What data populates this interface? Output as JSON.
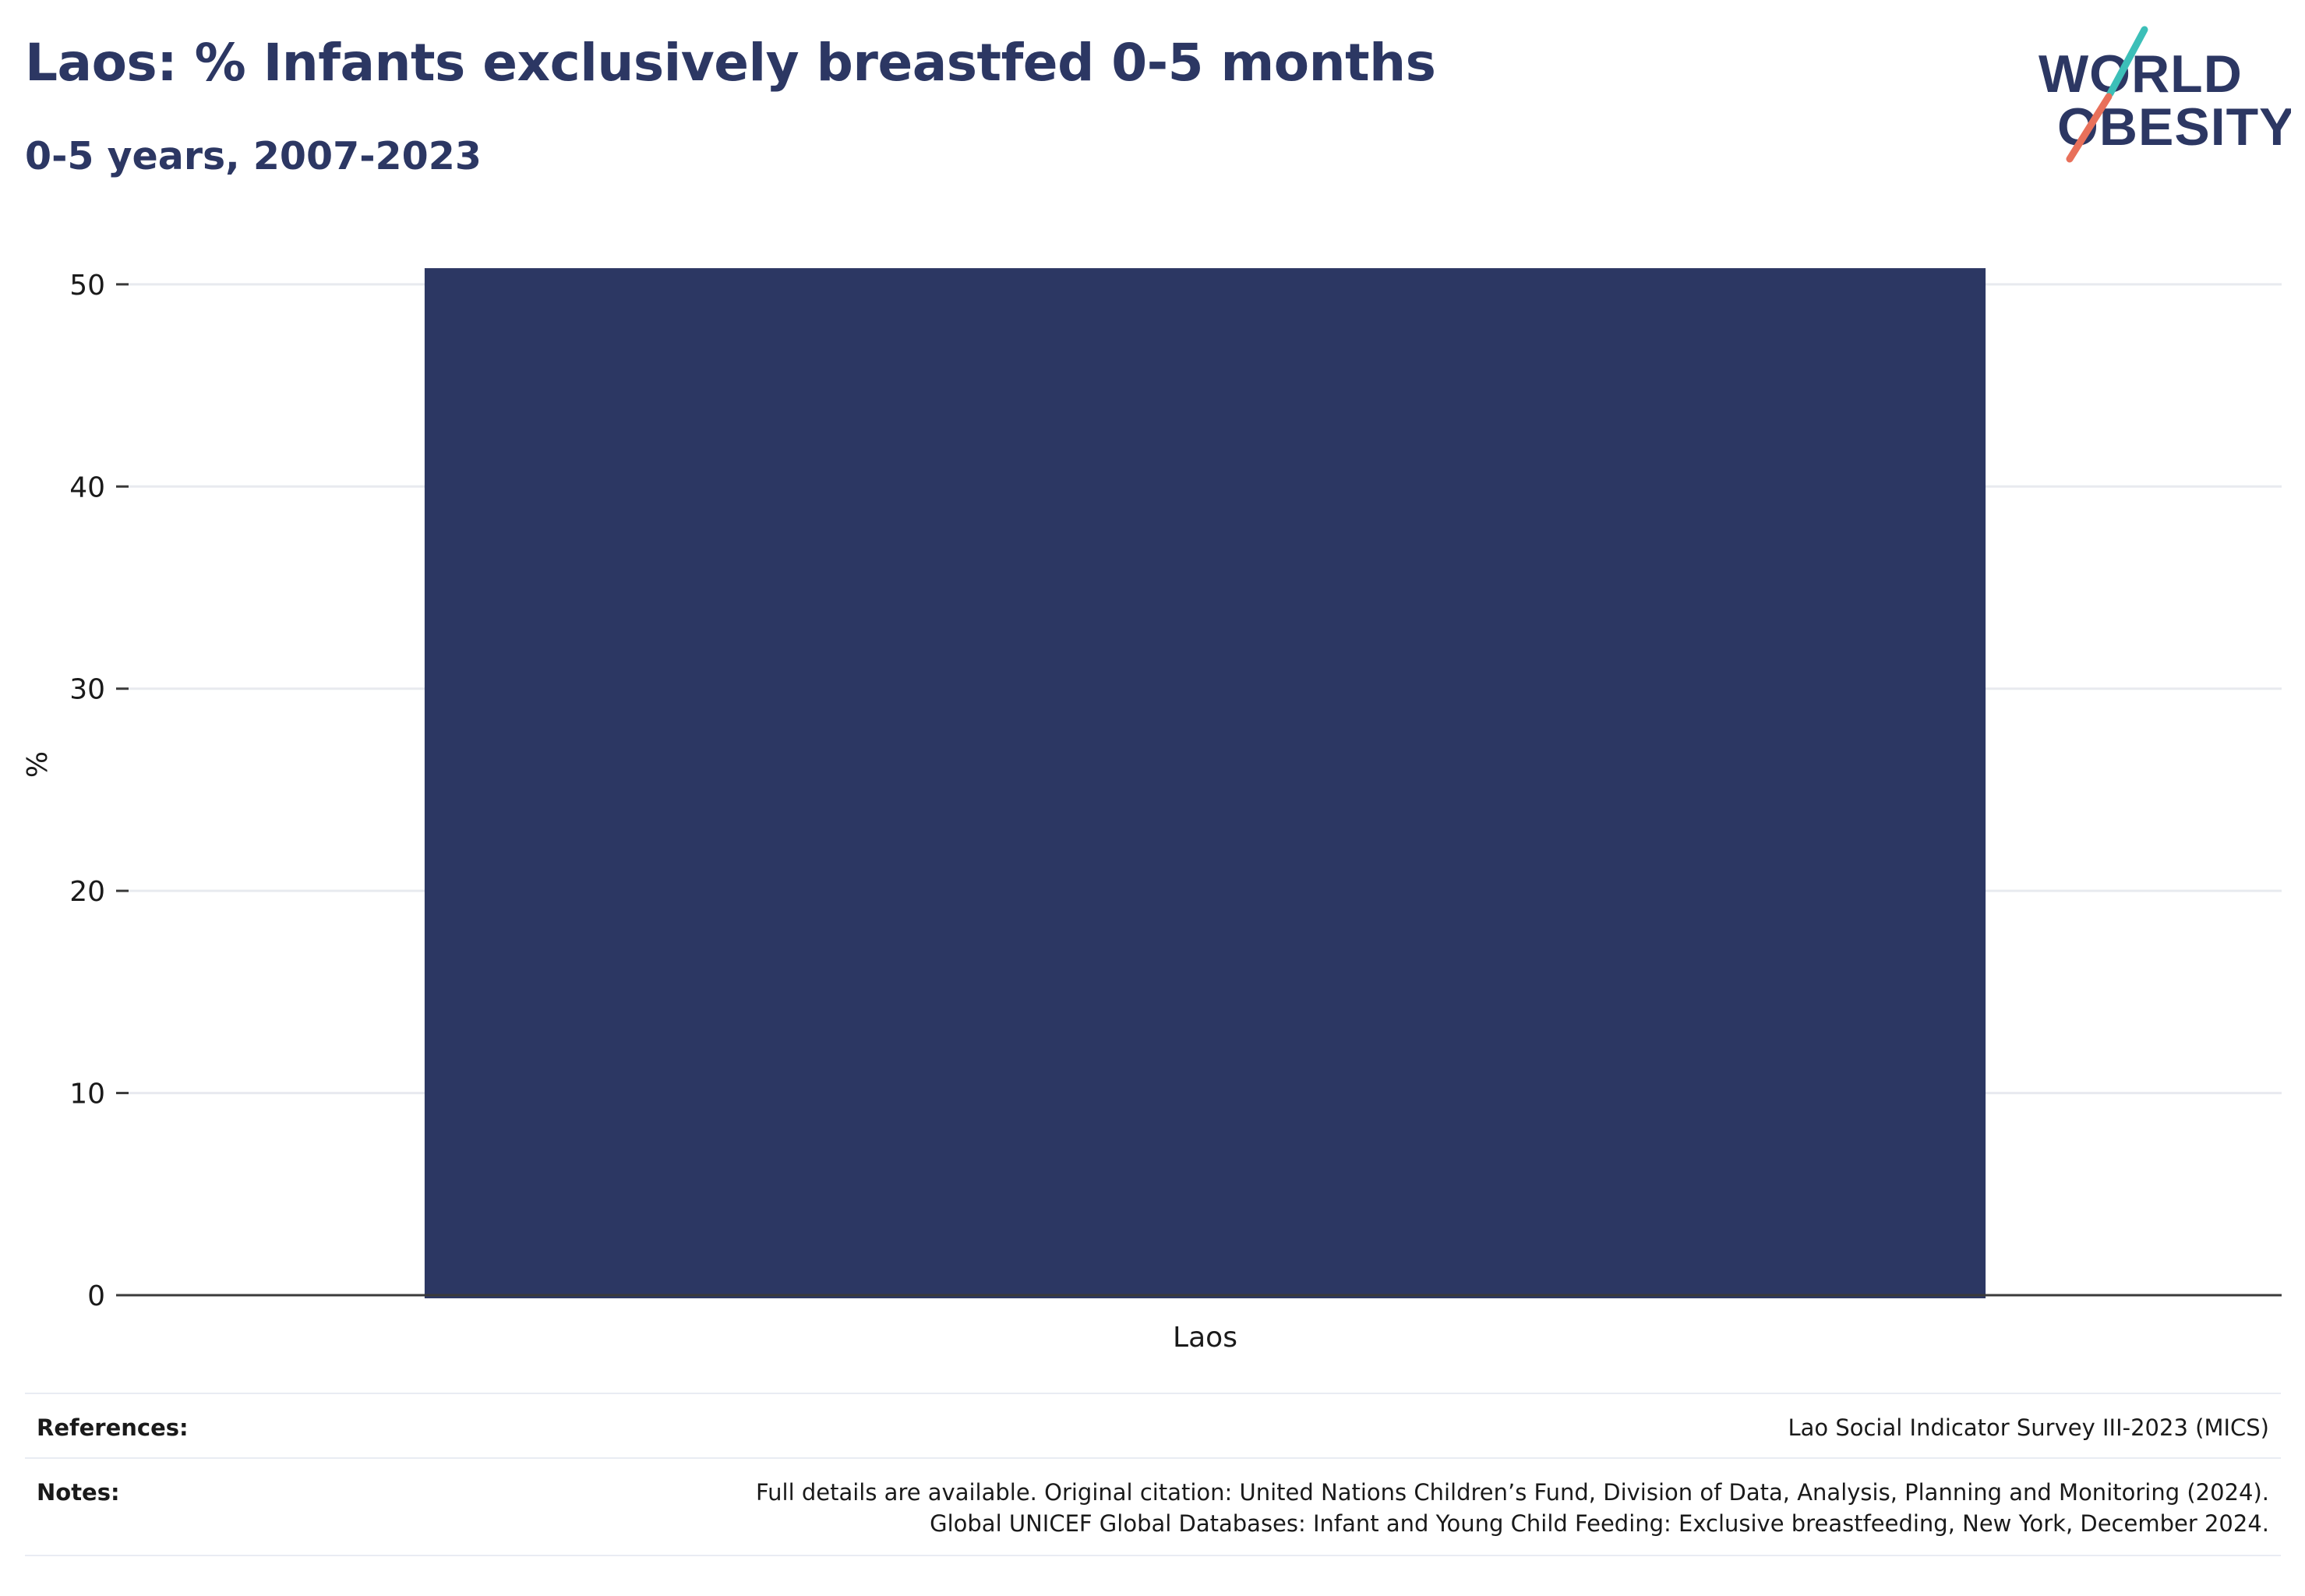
{
  "header": {
    "title": "Laos: % Infants exclusively breastfed 0-5 months",
    "subtitle": "0-5 years, 2007-2023"
  },
  "logo": {
    "line1": "WORLD",
    "line2": "OBESITY",
    "colors": {
      "text": "#2c3763",
      "teal": "#3cbfb8",
      "coral": "#e8705a"
    }
  },
  "chart_data": {
    "type": "bar",
    "categories": [
      "Laos"
    ],
    "series": [
      {
        "values": [
          50.8
        ]
      }
    ],
    "ylabel": "%",
    "xlabel": "",
    "ylim": [
      0,
      52.5
    ],
    "yticks": [
      0,
      10,
      20,
      30,
      40,
      50
    ],
    "grid": true,
    "bar_color": "#2c3763"
  },
  "footer": {
    "references_label": "References:",
    "references_text": "Lao Social Indicator Survey III-2023 (MICS)",
    "notes_label": "Notes:",
    "notes_line1": "Full details are available. Original citation: United Nations Children’s Fund, Division of Data, Analysis, Planning and Monitoring (2024).",
    "notes_line2": "Global UNICEF Global Databases: Infant and Young Child Feeding: Exclusive breastfeeding, New York, December 2024."
  }
}
